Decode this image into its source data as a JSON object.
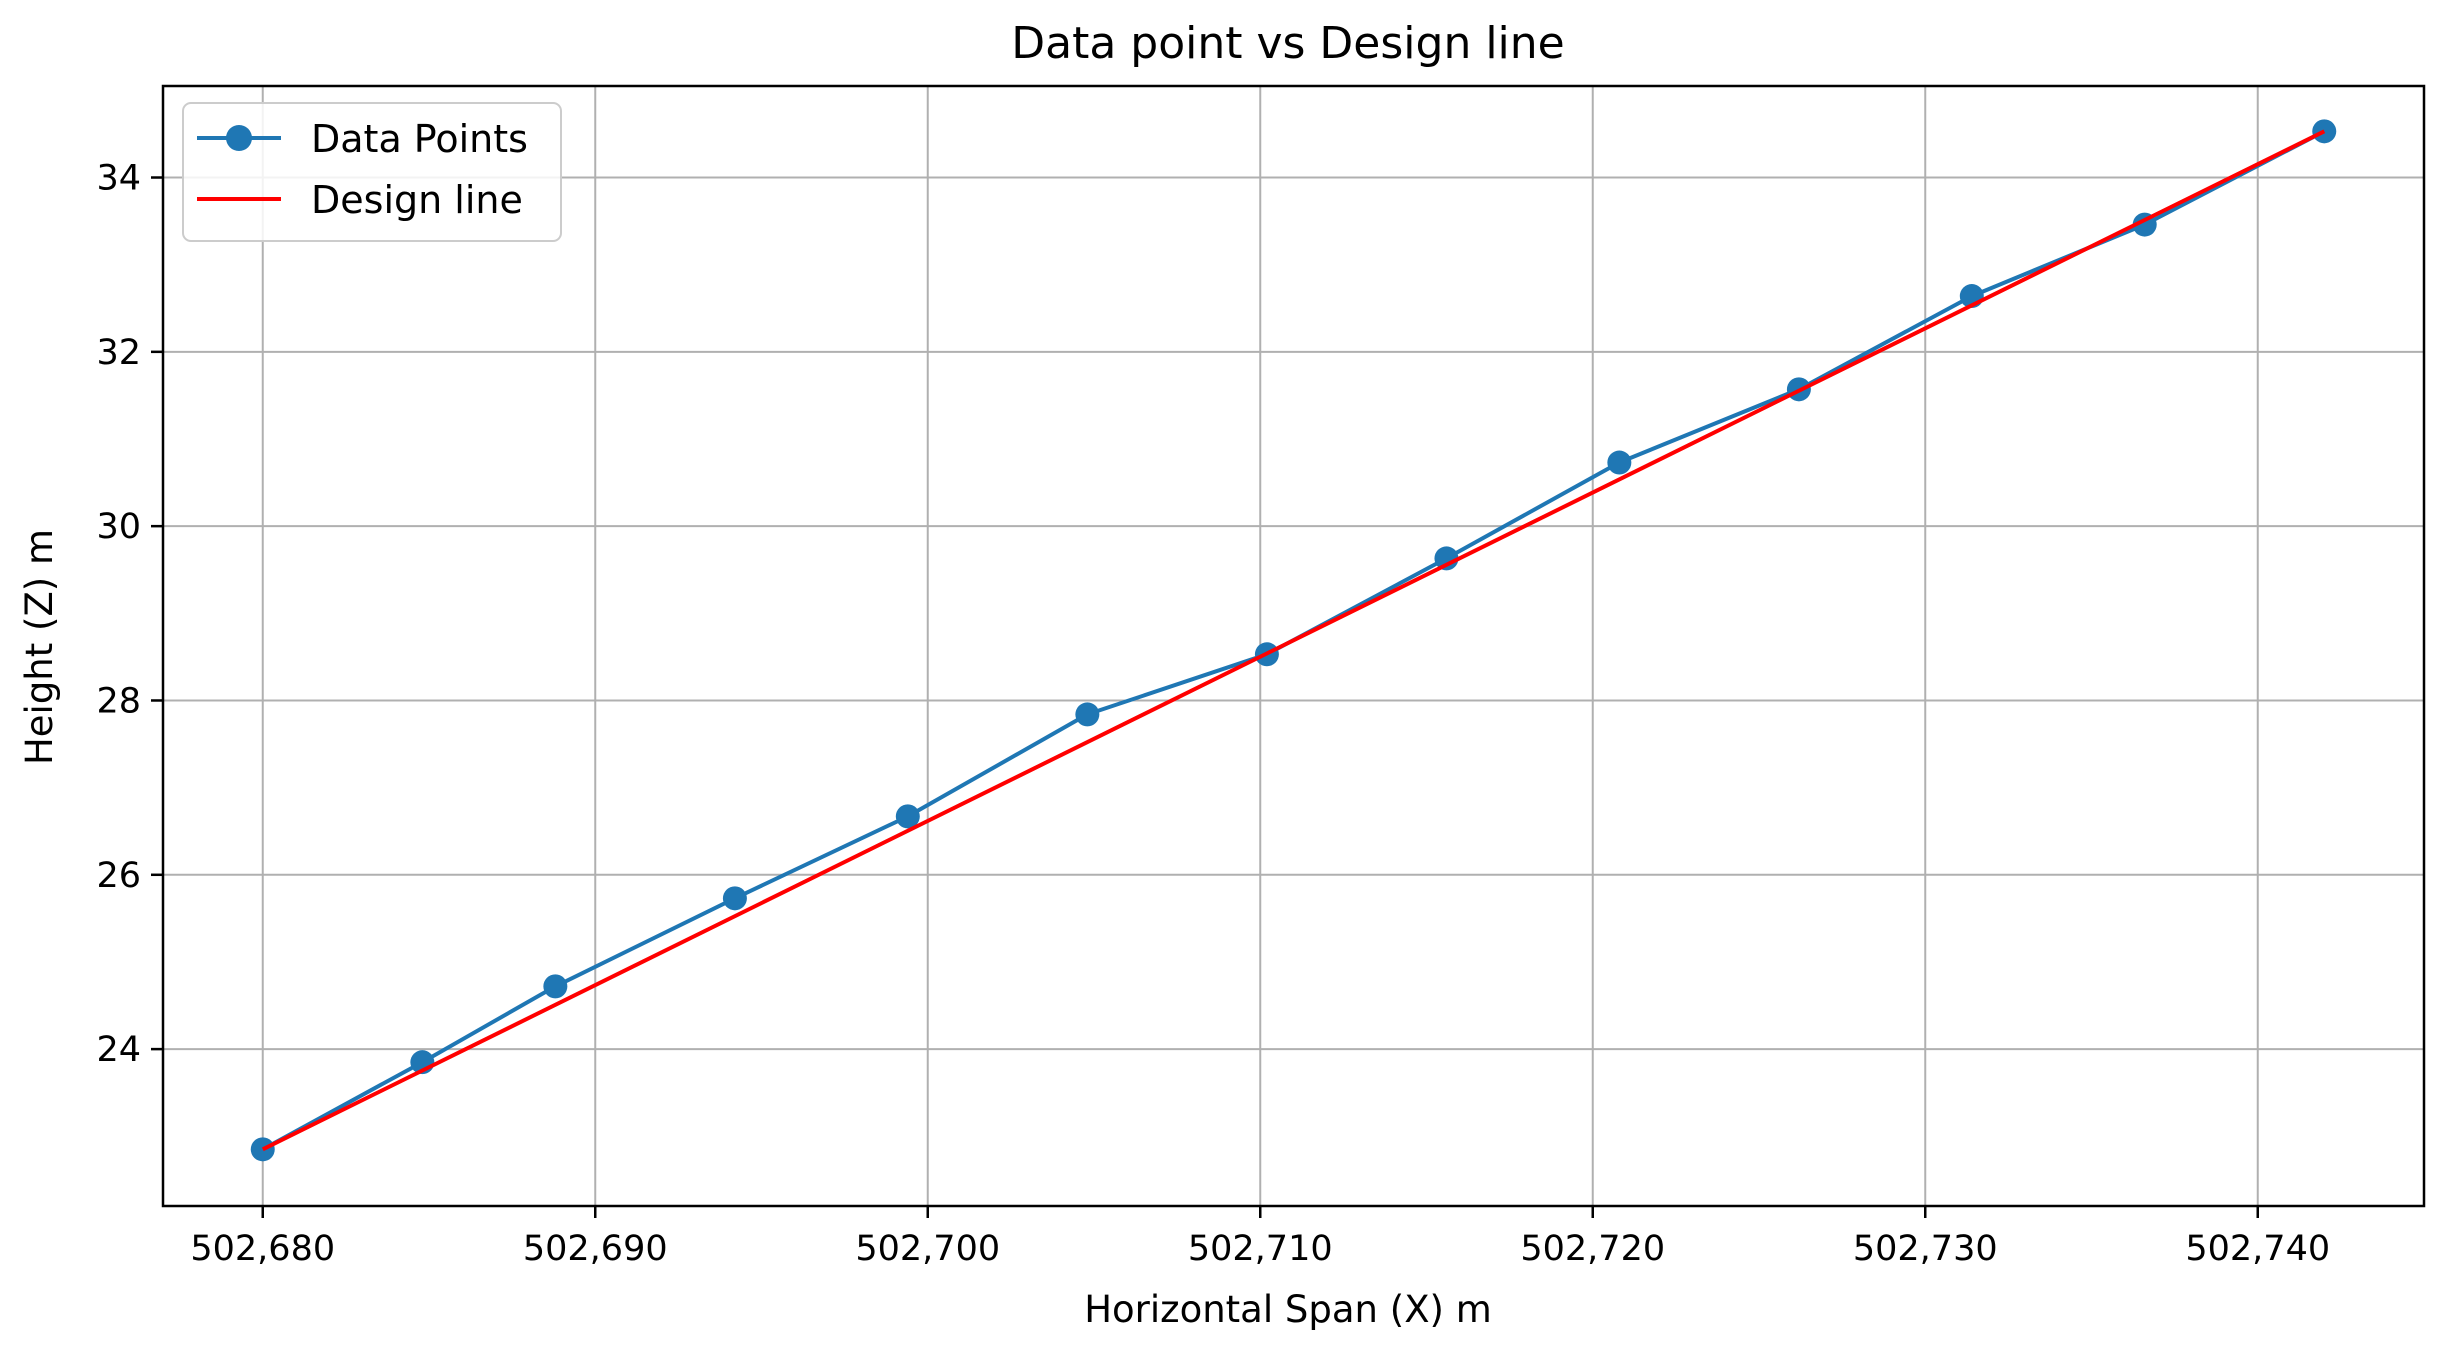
{
  "colors": {
    "data_points": "#1f77b4",
    "design_line": "#ff0000",
    "grid": "#b0b0b0",
    "axes": "#000000",
    "background": "#ffffff"
  },
  "chart_data": {
    "type": "line",
    "title": "Data point vs Design line",
    "xlabel": "Horizontal Span (X) m",
    "ylabel": "Height (Z) m",
    "xlim": [
      502677,
      502745
    ],
    "ylim": [
      22.2,
      35.05
    ],
    "grid": true,
    "legend_position": "top-left",
    "x_ticks": [
      502680,
      502690,
      502700,
      502710,
      502720,
      502730,
      502740
    ],
    "x_tick_labels": [
      "502,680",
      "502,690",
      "502,700",
      "502,710",
      "502,720",
      "502,730",
      "502,740"
    ],
    "y_ticks": [
      24,
      26,
      28,
      30,
      32,
      34
    ],
    "y_tick_labels": [
      "24",
      "26",
      "28",
      "30",
      "32",
      "34"
    ],
    "series": [
      {
        "name": "Data Points",
        "color": "#1f77b4",
        "marker": "circle",
        "x": [
          502680.0,
          502684.8,
          502688.8,
          502694.2,
          502699.4,
          502704.8,
          502710.2,
          502715.6,
          502720.8,
          502726.2,
          502731.4,
          502736.6,
          502742.0
        ],
        "y": [
          22.85,
          23.85,
          24.72,
          25.73,
          26.67,
          27.84,
          28.53,
          29.63,
          30.73,
          31.57,
          32.64,
          33.46,
          34.53
        ]
      },
      {
        "name": "Design line",
        "color": "#ff0000",
        "marker": "none",
        "x": [
          502680.0,
          502742.0
        ],
        "y": [
          22.85,
          34.53
        ]
      }
    ]
  }
}
